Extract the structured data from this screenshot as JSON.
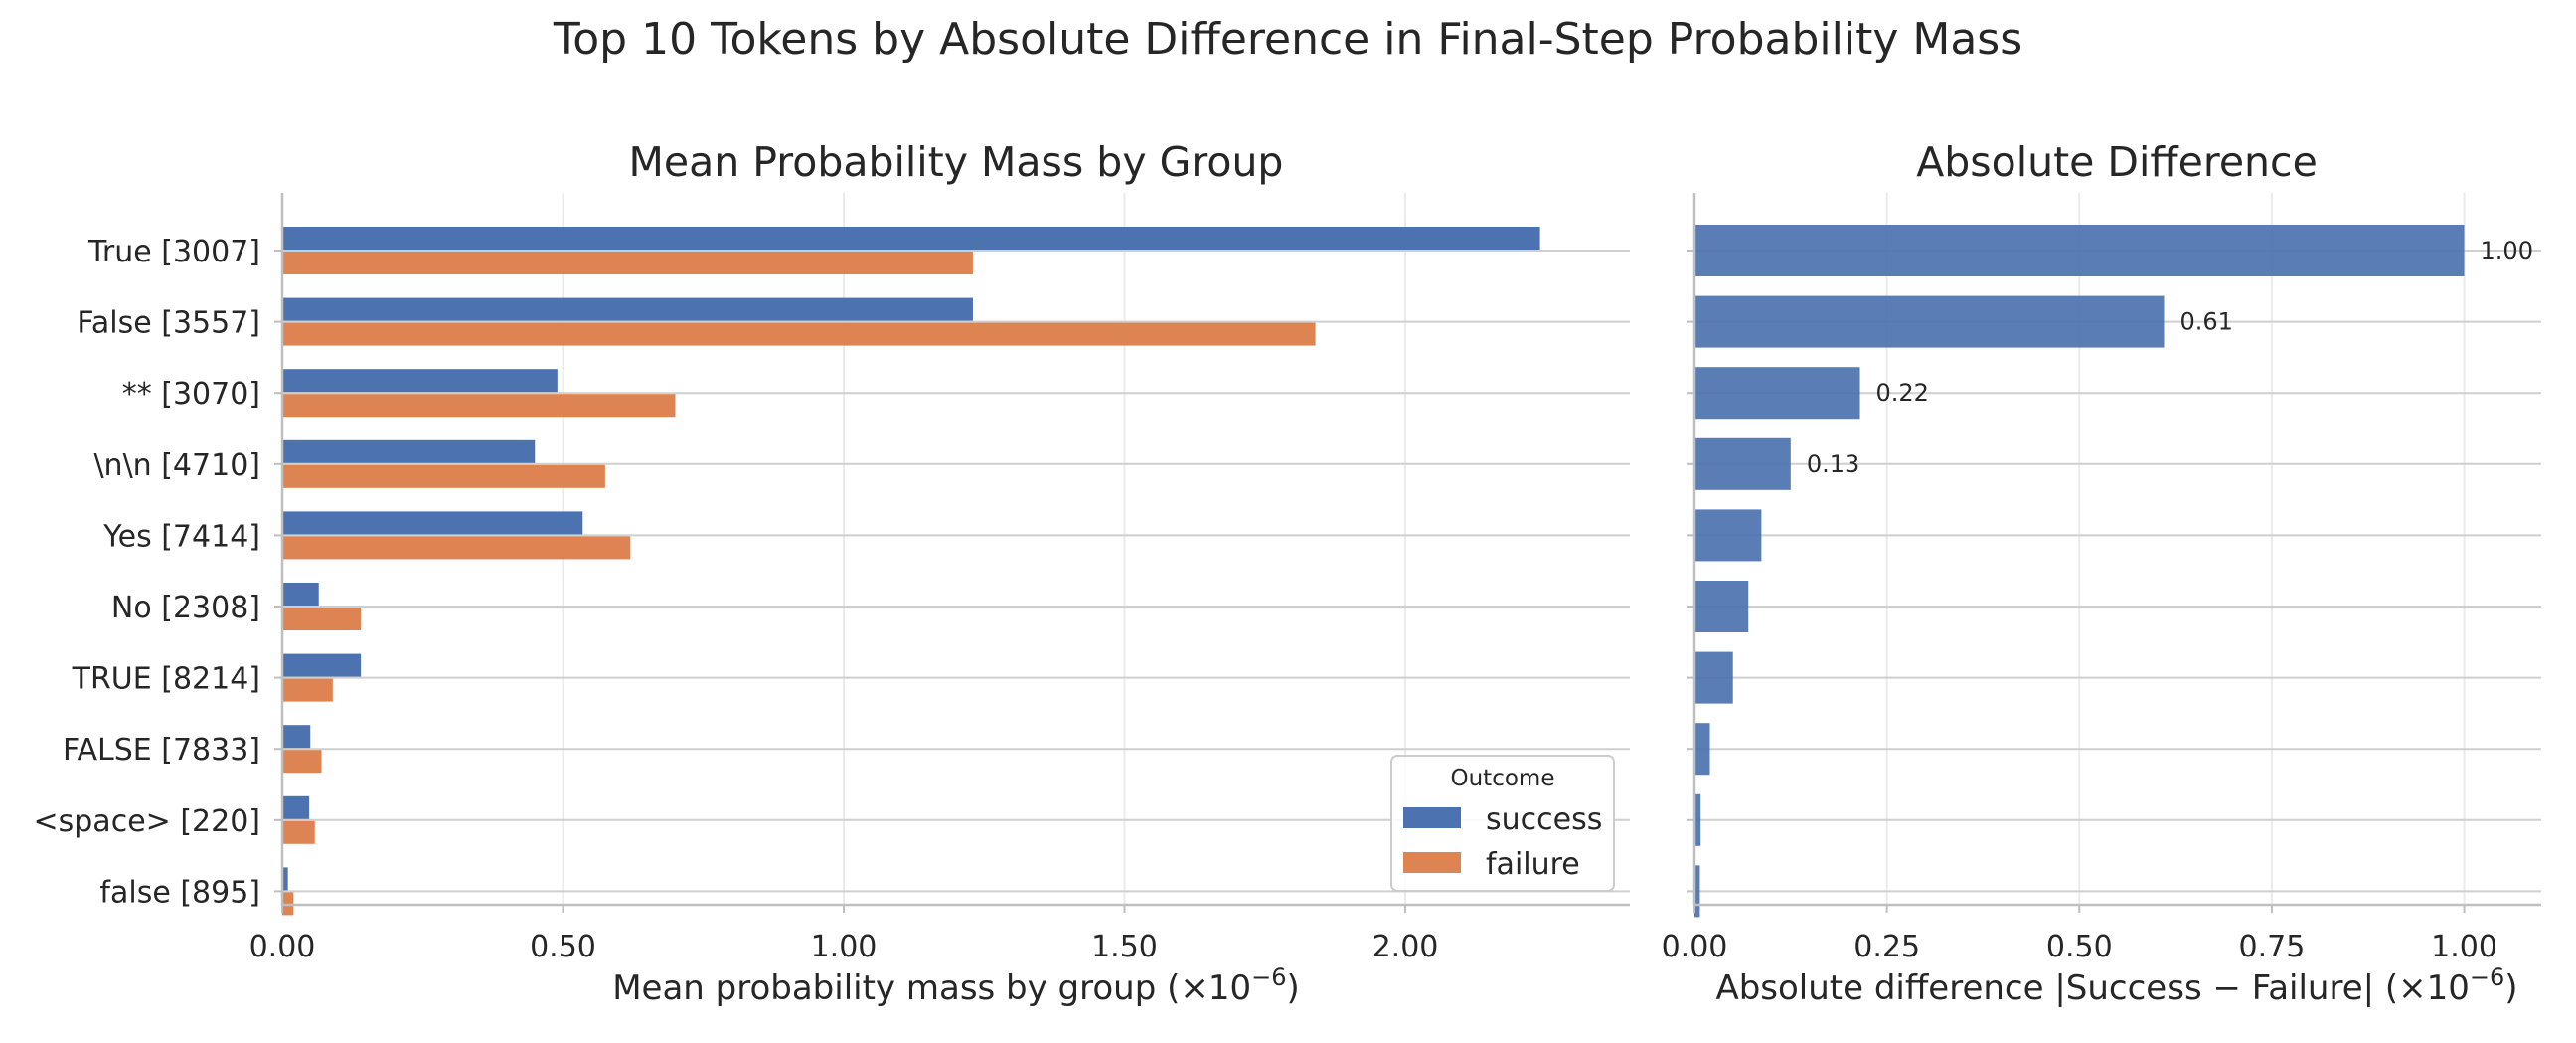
{
  "chart_data": [
    {
      "type": "bar",
      "orientation": "horizontal",
      "suptitle": "Top 10 Tokens by Absolute Difference in Final-Step Probability Mass",
      "title": "Mean Probability Mass by Group",
      "xlabel": "Mean probability mass by group (×10",
      "xlabel_exponent": "−6",
      "xlabel_close": ")",
      "xlim": [
        0,
        2.4
      ],
      "xticks": [
        0,
        0.5,
        1.0,
        1.5,
        2.0
      ],
      "xtick_labels": [
        "0.00",
        "0.50",
        "1.00",
        "1.50",
        "2.00"
      ],
      "categories": [
        "True [3007]",
        "False [3557]",
        "** [3070]",
        "\\n\\n [4710]",
        "Yes [7414]",
        "No [2308]",
        "TRUE [8214]",
        "FALSE [7833]",
        "<space> [220]",
        "false [895]"
      ],
      "series": [
        {
          "name": "success",
          "color": "#4c72b0",
          "values": [
            2.24,
            1.23,
            0.49,
            0.45,
            0.535,
            0.065,
            0.14,
            0.05,
            0.048,
            0.01
          ]
        },
        {
          "name": "failure",
          "color": "#dd8452",
          "values": [
            1.23,
            1.84,
            0.7,
            0.575,
            0.62,
            0.14,
            0.09,
            0.07,
            0.058,
            0.02
          ]
        }
      ],
      "legend": {
        "title": "Outcome",
        "position": "lower-right"
      },
      "grid": true
    },
    {
      "type": "bar",
      "orientation": "horizontal",
      "title": "Absolute Difference",
      "xlabel": "Absolute difference |Success − Failure| (×10",
      "xlabel_exponent": "−6",
      "xlabel_close": ")",
      "xlim": [
        0,
        1.1
      ],
      "xticks": [
        0,
        0.25,
        0.5,
        0.75,
        1.0
      ],
      "xtick_labels": [
        "0.00",
        "0.25",
        "0.50",
        "0.75",
        "1.00"
      ],
      "categories": [
        "True [3007]",
        "False [3557]",
        "** [3070]",
        "\\n\\n [4710]",
        "Yes [7414]",
        "No [2308]",
        "TRUE [8214]",
        "FALSE [7833]",
        "<space> [220]",
        "false [895]"
      ],
      "values": [
        1.0,
        0.61,
        0.215,
        0.125,
        0.087,
        0.07,
        0.05,
        0.02,
        0.008,
        0.007
      ],
      "color": "#4c72b0",
      "data_labels": [
        "1.00",
        "0.61",
        "0.22",
        "0.13",
        "",
        "",
        "",
        "",
        "",
        ""
      ],
      "grid": true
    }
  ]
}
